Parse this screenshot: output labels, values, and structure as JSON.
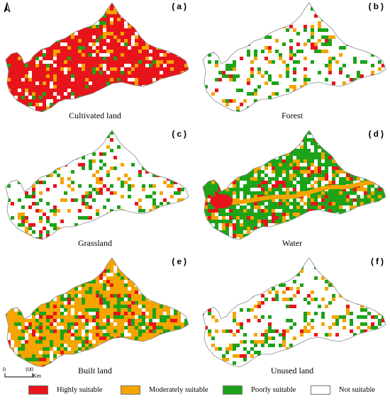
{
  "figure": {
    "colors": {
      "highly": "#e8141b",
      "moderately": "#f5a400",
      "poorly": "#1da319",
      "not": "#ffffff",
      "outline": "#8a8a8a"
    },
    "north_arrow": "north-arrow-icon",
    "scale": {
      "left_label": "0",
      "right_label": "100",
      "unit": "Km"
    },
    "panels": [
      {
        "id": "(a)",
        "title": "Cultivated  land",
        "dominant": "highly"
      },
      {
        "id": "(b)",
        "title": "Forest",
        "dominant": "not"
      },
      {
        "id": "(c)",
        "title": "Grassland",
        "dominant": "not"
      },
      {
        "id": "(d)",
        "title": "Water",
        "dominant": "poorly"
      },
      {
        "id": "(e)",
        "title": "Built land",
        "dominant": "moderately"
      },
      {
        "id": "(f)",
        "title": "Unused land",
        "dominant": "not"
      }
    ],
    "legend": [
      {
        "label": "Highly suitable",
        "color": "#e8141b"
      },
      {
        "label": "Moderately suitable",
        "color": "#f5a400"
      },
      {
        "label": "Poorly suitable",
        "color": "#1da319"
      },
      {
        "label": "Not suitable",
        "color": "#ffffff"
      }
    ]
  }
}
